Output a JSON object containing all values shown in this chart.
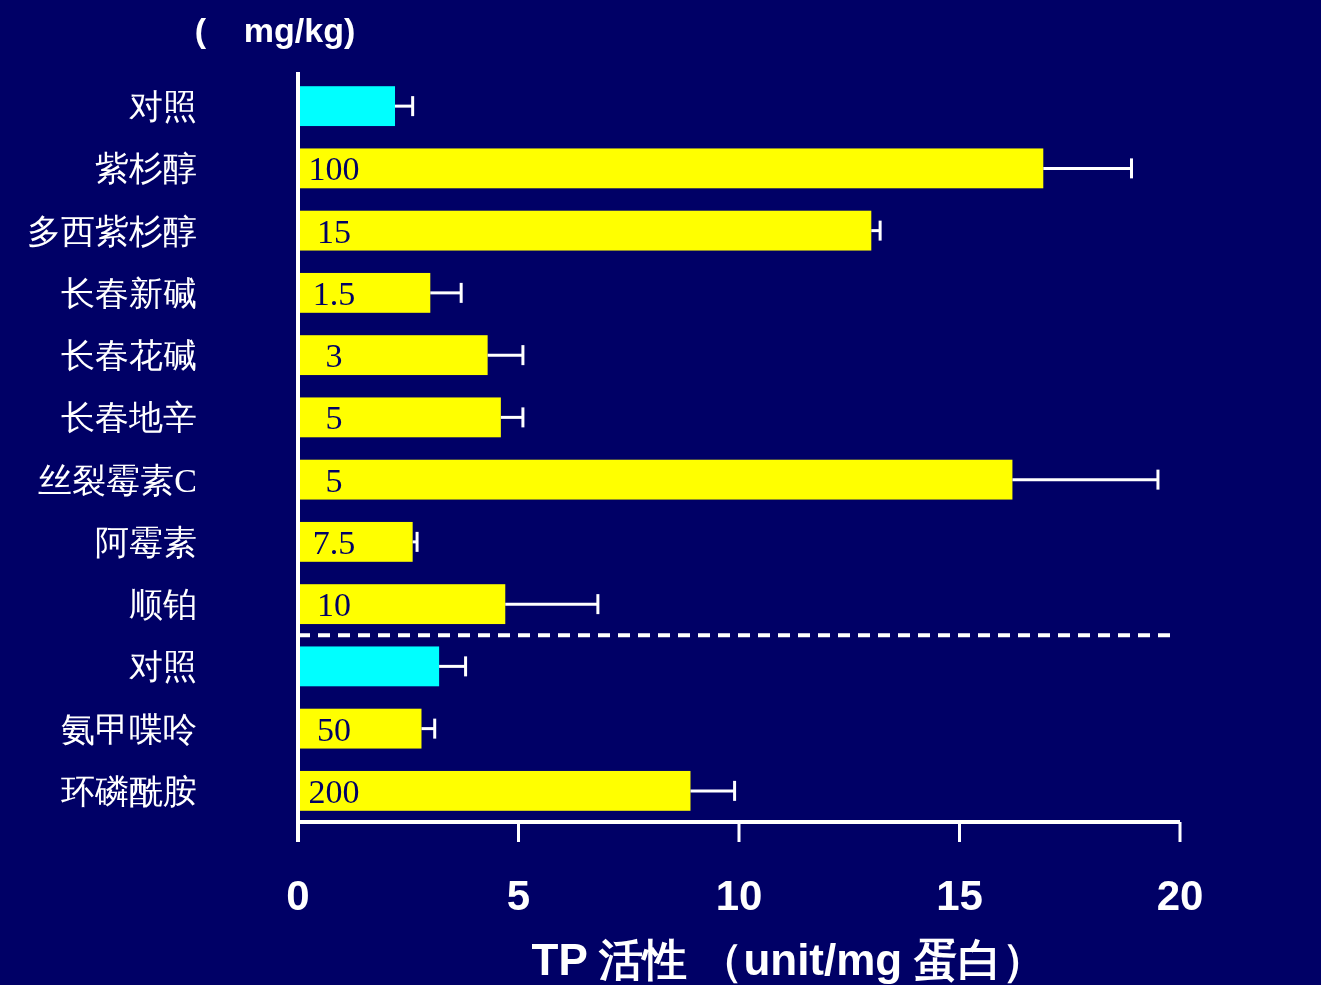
{
  "chart_data": {
    "type": "bar",
    "orientation": "horizontal",
    "title": "(    mg/kg)",
    "xlabel": "TP 活性 （unit/mg 蛋白）",
    "categories": [
      "对照",
      "紫杉醇",
      "多西紫杉醇",
      "长春新碱",
      "长春花碱",
      "长春地辛",
      "丝裂霉素C",
      "阿霉素",
      "顺铂",
      "对照",
      "氨甲喋呤",
      "环磷酰胺"
    ],
    "values": [
      2.2,
      16.9,
      13.0,
      3.0,
      4.3,
      4.6,
      16.2,
      2.6,
      4.7,
      3.2,
      2.8,
      8.9
    ],
    "errors": [
      0.4,
      2.0,
      0.2,
      0.7,
      0.8,
      0.5,
      3.3,
      0.1,
      2.1,
      0.6,
      0.3,
      1.0
    ],
    "colors": [
      "#00ffff",
      "#ffff00",
      "#ffff00",
      "#ffff00",
      "#ffff00",
      "#ffff00",
      "#ffff00",
      "#ffff00",
      "#ffff00",
      "#00ffff",
      "#ffff00",
      "#ffff00"
    ],
    "annotations": [
      "100",
      "15",
      "1.5",
      "3",
      "5",
      "5",
      "7.5",
      "10",
      "50",
      "200"
    ],
    "xlim": [
      0,
      20
    ],
    "xticks": [
      0,
      5,
      10,
      15,
      20
    ],
    "grid": false
  }
}
